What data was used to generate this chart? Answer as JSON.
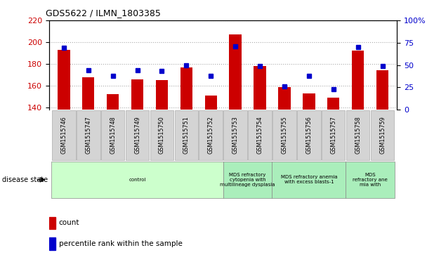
{
  "title": "GDS5622 / ILMN_1803385",
  "samples": [
    "GSM1515746",
    "GSM1515747",
    "GSM1515748",
    "GSM1515749",
    "GSM1515750",
    "GSM1515751",
    "GSM1515752",
    "GSM1515753",
    "GSM1515754",
    "GSM1515755",
    "GSM1515756",
    "GSM1515757",
    "GSM1515758",
    "GSM1515759"
  ],
  "counts": [
    193,
    168,
    152,
    166,
    165,
    177,
    151,
    207,
    178,
    159,
    153,
    149,
    192,
    174
  ],
  "percentiles": [
    69,
    44,
    38,
    44,
    43,
    50,
    38,
    71,
    49,
    26,
    38,
    23,
    70,
    49
  ],
  "ylim_left": [
    138,
    220
  ],
  "ylim_right": [
    0,
    100
  ],
  "yticks_left": [
    140,
    160,
    180,
    200,
    220
  ],
  "yticks_right": [
    0,
    25,
    50,
    75,
    100
  ],
  "bar_color": "#cc0000",
  "dot_color": "#0000cc",
  "bar_width": 0.5,
  "disease_groups": [
    {
      "label": "control",
      "start": 0,
      "end": 7,
      "color": "#ccffcc"
    },
    {
      "label": "MDS refractory\ncytopenia with\nmultilineage dysplasia",
      "start": 7,
      "end": 9,
      "color": "#aaeebb"
    },
    {
      "label": "MDS refractory anemia\nwith excess blasts-1",
      "start": 9,
      "end": 12,
      "color": "#aaeebb"
    },
    {
      "label": "MDS\nrefractory ane\nmia with",
      "start": 12,
      "end": 14,
      "color": "#aaeebb"
    }
  ],
  "legend_count": "count",
  "legend_percentile": "percentile rank within the sample",
  "tick_label_color_left": "#cc0000",
  "tick_label_color_right": "#0000cc"
}
